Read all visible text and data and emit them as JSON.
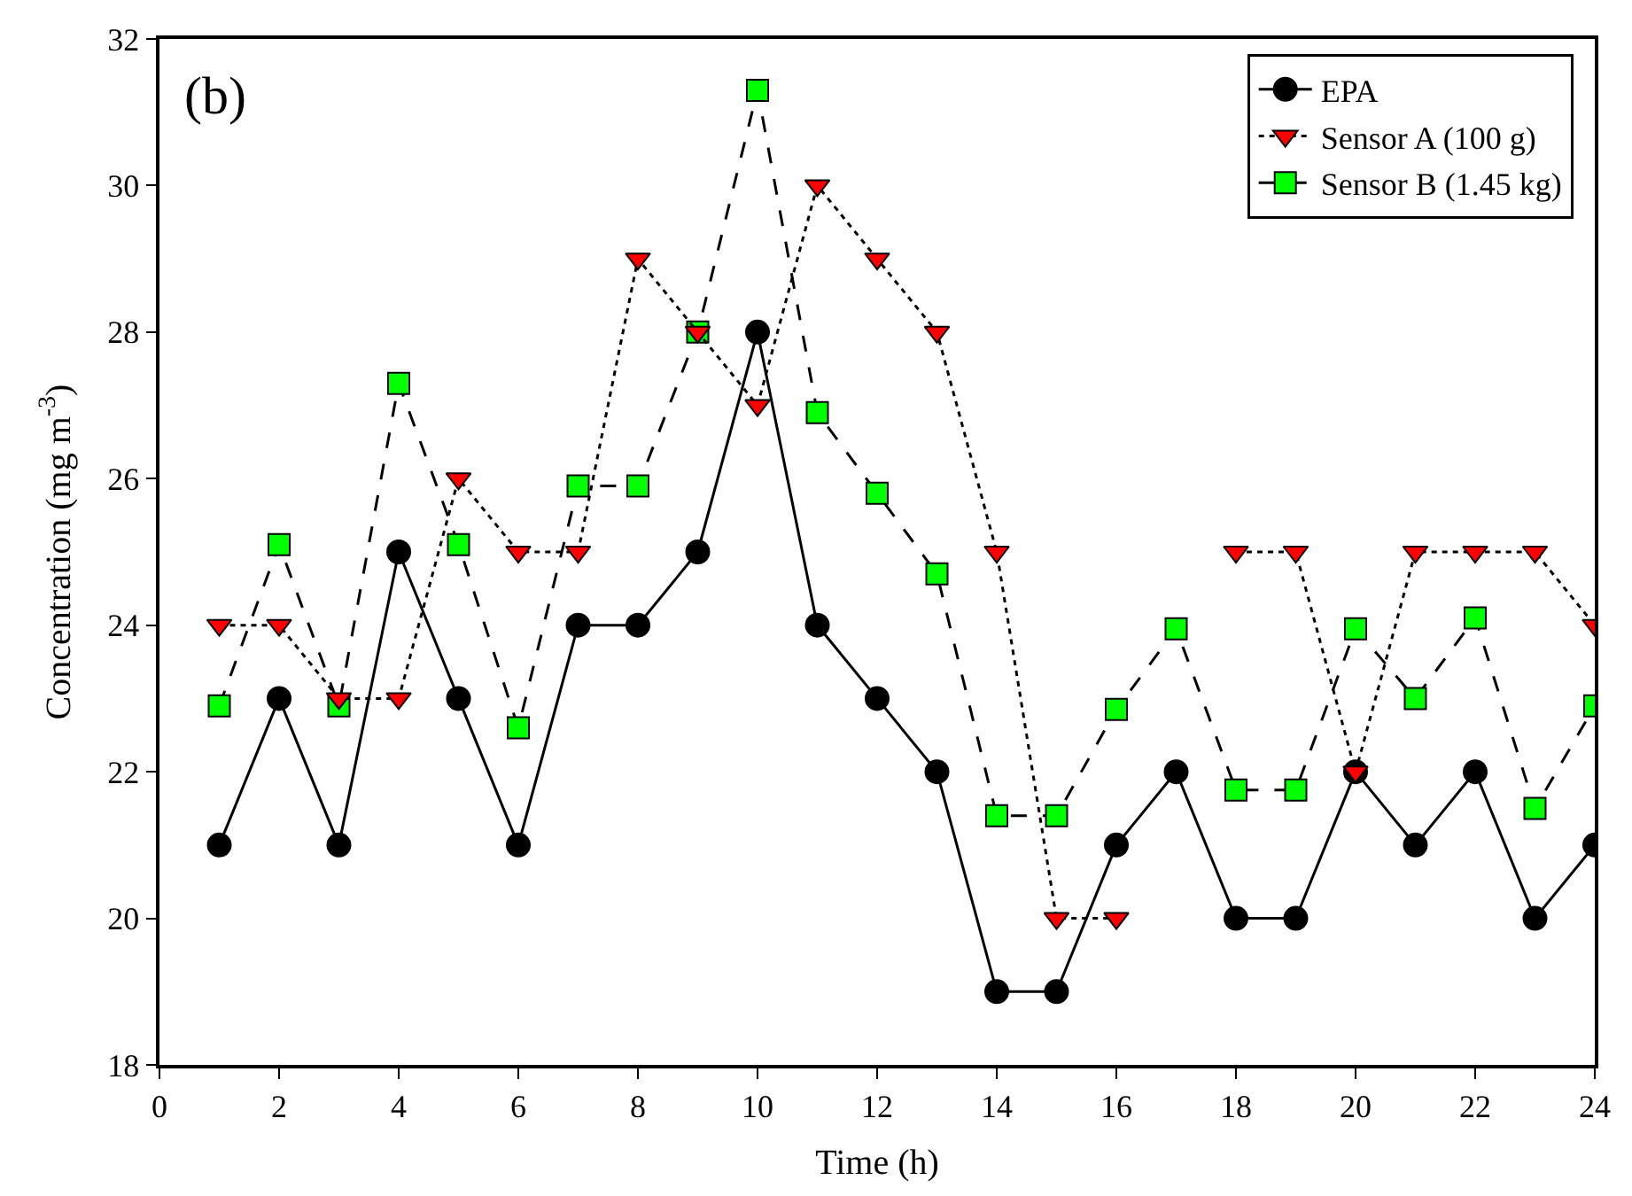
{
  "chart_data": {
    "type": "line",
    "xlabel": "Time (h)",
    "ylabel": "Concentration (mg m$^{-3}$)",
    "annotations": [
      "(b)"
    ],
    "x": [
      1,
      2,
      3,
      4,
      5,
      6,
      7,
      8,
      9,
      10,
      11,
      12,
      13,
      14,
      15,
      16,
      17,
      18,
      19,
      20,
      21,
      22,
      23,
      24
    ],
    "series": [
      {
        "name": "EPA",
        "color": "#000000",
        "marker": "circle",
        "line_style": "solid",
        "values": [
          21,
          23,
          21,
          25,
          23,
          21,
          24,
          24,
          25,
          28,
          24,
          23,
          22,
          19,
          19,
          21,
          22,
          20,
          20,
          22,
          21,
          22,
          20,
          21
        ]
      },
      {
        "name": "Sensor A (100 g)",
        "color": "#ff0000",
        "marker": "triangle",
        "line_style": "dotted",
        "values": [
          24,
          24,
          23,
          23,
          26,
          25,
          25,
          29,
          28,
          27,
          30,
          29,
          28,
          25,
          20,
          20,
          null,
          25,
          25,
          22,
          25,
          25,
          25,
          24
        ]
      },
      {
        "name": "Sensor B (1.45 kg)",
        "color": "#00ff00",
        "marker": "square",
        "line_style": "dashed",
        "values": [
          22.9,
          25.1,
          22.9,
          27.3,
          25.1,
          22.6,
          25.9,
          25.9,
          28,
          31.3,
          26.9,
          25.8,
          24.7,
          21.4,
          21.4,
          22.85,
          23.95,
          21.75,
          21.75,
          23.95,
          23,
          24.1,
          21.5,
          22.9
        ]
      }
    ],
    "xlim": [
      0,
      24
    ],
    "xticks": [
      0,
      2,
      4,
      6,
      8,
      10,
      12,
      14,
      16,
      18,
      20,
      22,
      24
    ],
    "ylim": [
      18,
      32
    ],
    "yticks": [
      18,
      20,
      22,
      24,
      26,
      28,
      30,
      32
    ],
    "grid": false,
    "legend": "top right"
  }
}
